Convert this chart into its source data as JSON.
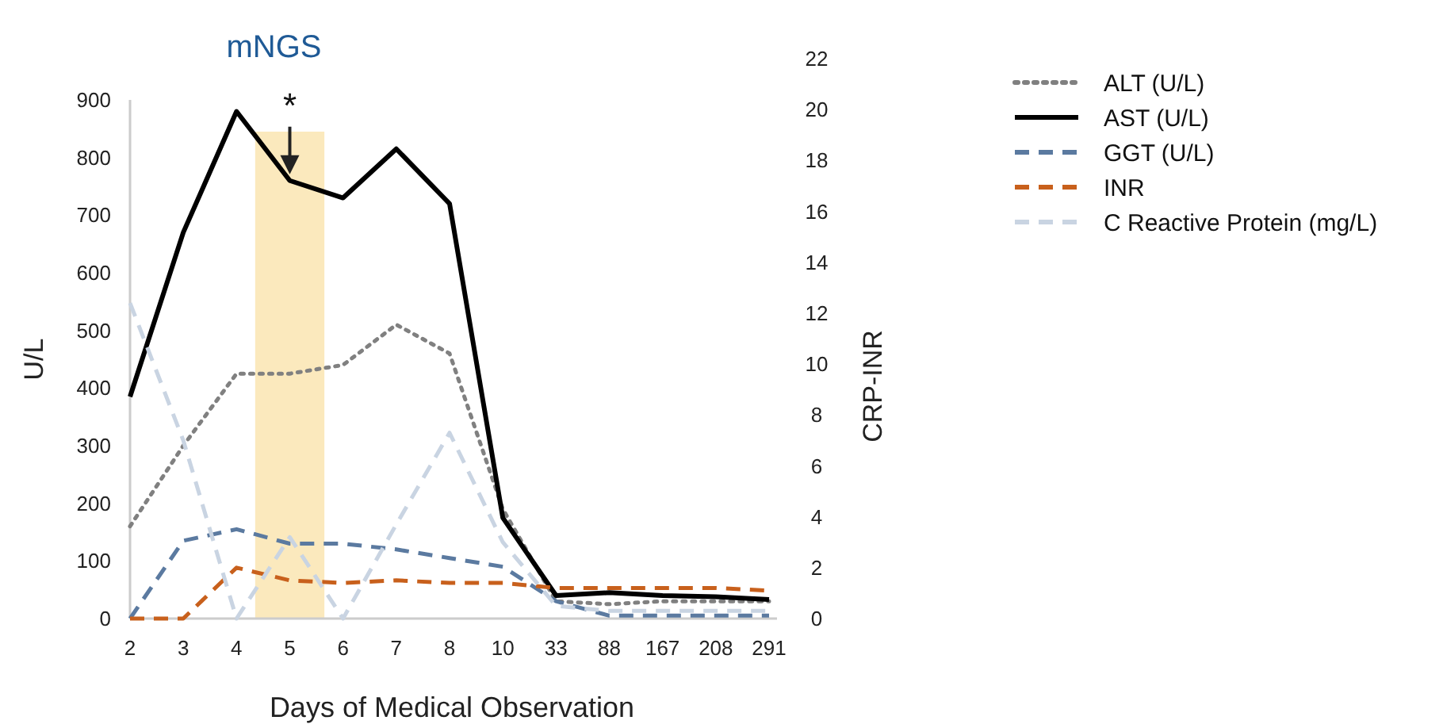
{
  "chart_data": {
    "type": "line",
    "title": "mNGS",
    "xlabel": "Days of Medical Observation",
    "ylabel": "U/L",
    "y2label": "CRP-INR",
    "categories": [
      "2",
      "3",
      "4",
      "5",
      "6",
      "7",
      "8",
      "10",
      "33",
      "88",
      "167",
      "208",
      "291"
    ],
    "series": [
      {
        "name": "ALT (U/L)",
        "color": "#808080",
        "line_style": "dotted",
        "values": [
          160,
          300,
          425,
          425,
          440,
          510,
          460,
          190,
          30,
          25,
          30,
          30,
          30
        ]
      },
      {
        "name": "AST (U/L)",
        "color": "#000000",
        "line_style": "solid",
        "values": [
          385,
          670,
          880,
          760,
          730,
          815,
          720,
          175,
          40,
          45,
          40,
          38,
          33
        ]
      },
      {
        "name": "GGT (U/L)",
        "color": "#5b7aa0",
        "line_style": "dashed",
        "values": [
          0,
          135,
          155,
          130,
          130,
          120,
          105,
          90,
          30,
          5,
          5,
          5,
          5
        ]
      },
      {
        "name": "INR",
        "color": "#c8601c",
        "line_style": "dashed",
        "axis": "y2",
        "values": [
          0,
          0,
          2,
          1.5,
          1.4,
          1.5,
          1.4,
          1.4,
          1.2,
          1.2,
          1.2,
          1.2,
          1.1
        ]
      },
      {
        "name": "C Reactive Protein (mg/L)",
        "color": "#c9d4e2",
        "line_style": "dashed",
        "axis": "y2",
        "values": [
          12.4,
          7,
          0,
          3.2,
          0,
          3.7,
          7.3,
          3,
          0.5,
          0.3,
          0.3,
          0.3,
          0.3
        ]
      }
    ],
    "ylim": [
      0,
      900
    ],
    "yticks": [
      0,
      100,
      200,
      300,
      400,
      500,
      600,
      700,
      800,
      900
    ],
    "y2lim": [
      0,
      22
    ],
    "y2ticks": [
      0,
      2,
      4,
      6,
      8,
      10,
      12,
      14,
      16,
      18,
      20,
      22
    ],
    "bands": [
      {
        "axis": "x",
        "from": "5",
        "to": "5",
        "color": "#fbe9bd"
      }
    ],
    "annotations": [
      {
        "text": "*",
        "x": "5",
        "y": 760
      }
    ],
    "grid": false,
    "legend": "top right"
  }
}
